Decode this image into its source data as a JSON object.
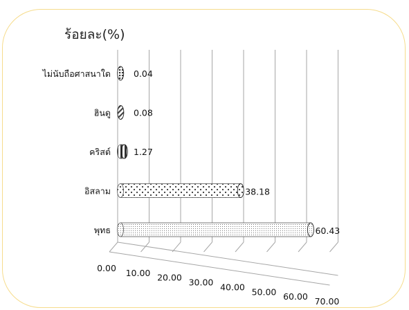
{
  "chart_data": {
    "type": "bar",
    "orientation": "horizontal",
    "title": "",
    "unit_label": "ร้อยละ(%)",
    "categories": [
      "ไม่นับถือศาสนาใด",
      "ฮินดู",
      "คริสต์",
      "อิสลาม",
      "พุทธ"
    ],
    "values": [
      0.04,
      0.08,
      1.27,
      38.18,
      60.43
    ],
    "value_labels": [
      "0.04",
      "0.08",
      "1.27",
      "38.18",
      "60.43"
    ],
    "x_ticks": [
      "0.00",
      "10.00",
      "20.00",
      "30.00",
      "40.00",
      "50.00",
      "60.00",
      "70.00"
    ],
    "xlim": [
      0,
      70
    ],
    "grid": true,
    "legend": "none",
    "bar_style": "3d-cylinder",
    "colors": {
      "frame": "#f6dc8c",
      "grid": "#a6a6a6",
      "bar_fill": "#ffffff",
      "bar_pattern": "#444444"
    }
  }
}
